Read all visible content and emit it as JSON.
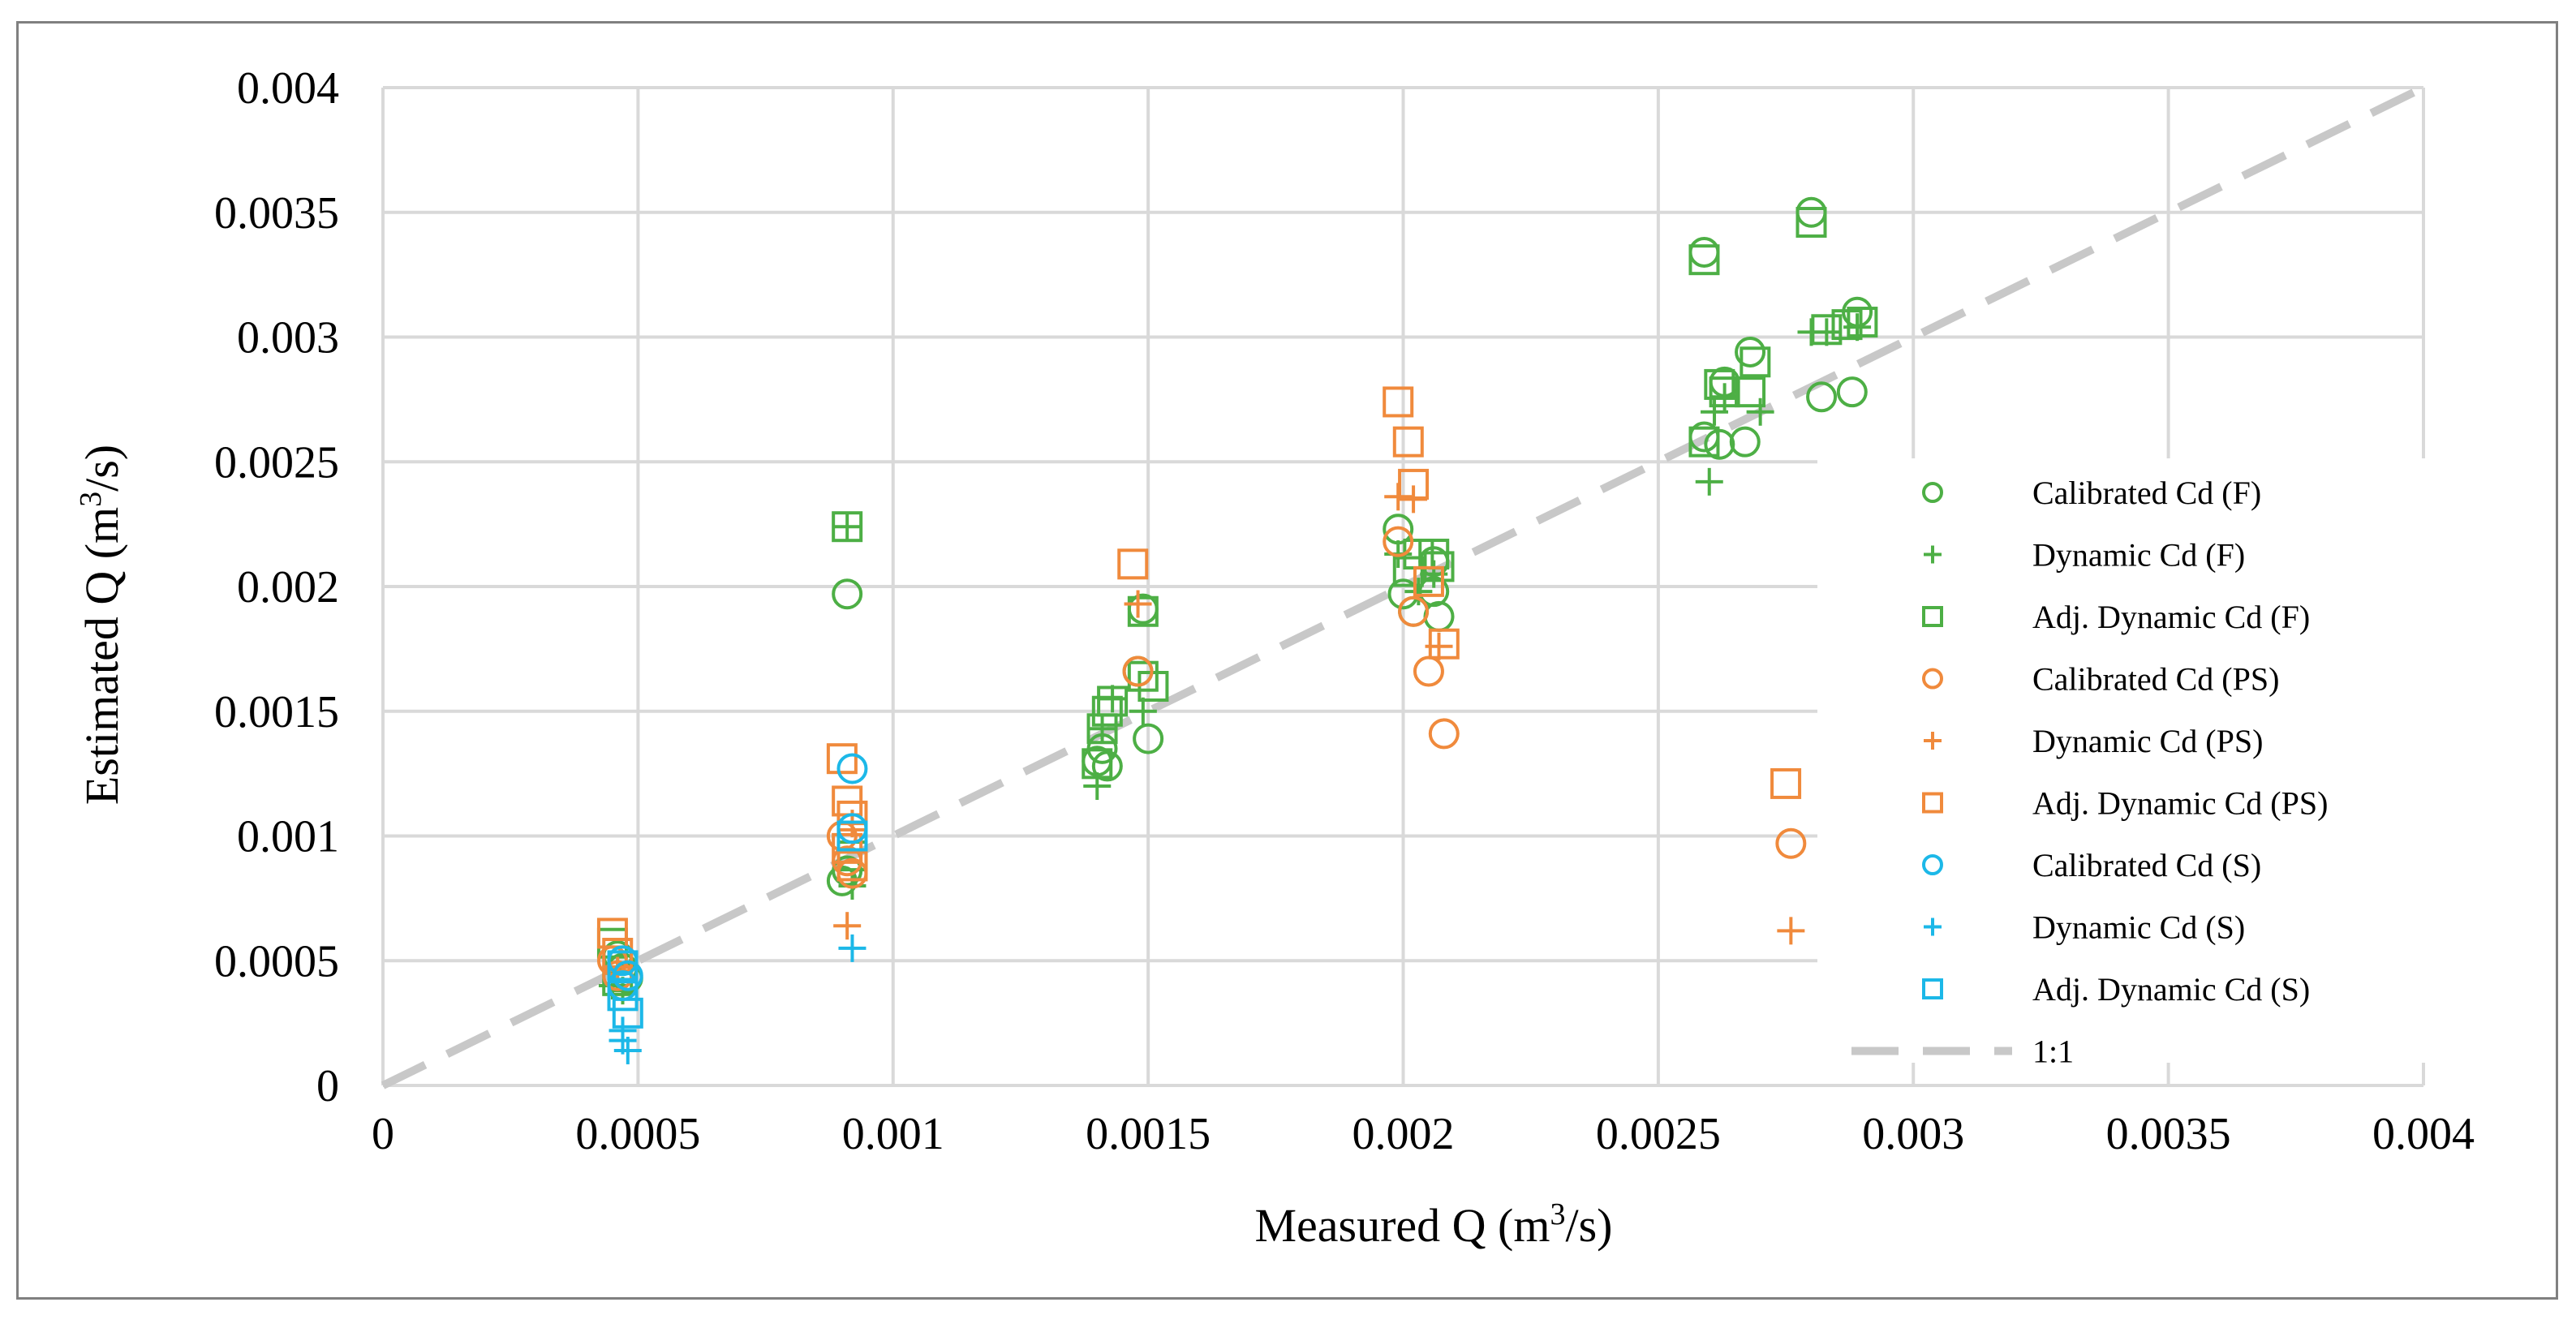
{
  "chart_data": {
    "type": "scatter",
    "title": "",
    "xlabel": "Measured Q (m³/s)",
    "ylabel": "Estimated Q (m³/s)",
    "xlim": [
      0,
      0.004
    ],
    "ylim": [
      0,
      0.004
    ],
    "xticks": [
      "0",
      "0.0005",
      "0.001",
      "0.0015",
      "0.002",
      "0.0025",
      "0.003",
      "0.0035",
      "0.004"
    ],
    "yticks": [
      "0",
      "0.0005",
      "0.001",
      "0.0015",
      "0.002",
      "0.0025",
      "0.003",
      "0.0035",
      "0.004"
    ],
    "grid": true,
    "legend_position": "right",
    "colors": {
      "F": "#4DAF45",
      "PS": "#F08A3C",
      "S": "#1CB8E8",
      "line": "#C8C8C8",
      "grid": "#D9D9D9"
    },
    "series": [
      {
        "name": "Calibrated Cd (F)",
        "marker": "circle",
        "color": "#4DAF45",
        "points": [
          [
            0.00046,
            0.00052
          ],
          [
            0.00047,
            0.00047
          ],
          [
            0.00048,
            0.00043
          ],
          [
            0.00091,
            0.00197
          ],
          [
            0.0009,
            0.00082
          ],
          [
            0.00091,
            0.00086
          ],
          [
            0.0014,
            0.0013
          ],
          [
            0.00141,
            0.00135
          ],
          [
            0.00142,
            0.00128
          ],
          [
            0.0015,
            0.00139
          ],
          [
            0.00148,
            0.00166
          ],
          [
            0.00149,
            0.00191
          ],
          [
            0.00199,
            0.00223
          ],
          [
            0.002,
            0.00197
          ],
          [
            0.00202,
            0.0019
          ],
          [
            0.00206,
            0.00198
          ],
          [
            0.00207,
            0.00188
          ],
          [
            0.00206,
            0.0021
          ],
          [
            0.00259,
            0.00334
          ],
          [
            0.00259,
            0.0026
          ],
          [
            0.00262,
            0.00257
          ],
          [
            0.00263,
            0.00282
          ],
          [
            0.00267,
            0.00258
          ],
          [
            0.00268,
            0.00294
          ],
          [
            0.0028,
            0.0035
          ],
          [
            0.00282,
            0.00276
          ],
          [
            0.00288,
            0.00278
          ],
          [
            0.00289,
            0.0031
          ]
        ]
      },
      {
        "name": "Dynamic Cd (F)",
        "marker": "plus",
        "color": "#4DAF45",
        "points": [
          [
            0.00045,
            0.0004
          ],
          [
            0.00046,
            0.00045
          ],
          [
            0.00047,
            0.00038
          ],
          [
            0.00091,
            0.00224
          ],
          [
            0.00092,
            0.0008
          ],
          [
            0.0014,
            0.0012
          ],
          [
            0.00141,
            0.00143
          ],
          [
            0.00143,
            0.00155
          ],
          [
            0.00149,
            0.0015
          ],
          [
            0.00199,
            0.00213
          ],
          [
            0.00203,
            0.00198
          ],
          [
            0.00206,
            0.00205
          ],
          [
            0.0026,
            0.00242
          ],
          [
            0.00261,
            0.0027
          ],
          [
            0.00263,
            0.00276
          ],
          [
            0.0027,
            0.0027
          ],
          [
            0.0028,
            0.00302
          ],
          [
            0.00283,
            0.00302
          ],
          [
            0.00289,
            0.00304
          ]
        ]
      },
      {
        "name": "Adj. Dynamic Cd (F)",
        "marker": "square",
        "color": "#4DAF45",
        "points": [
          [
            0.00045,
            0.00057
          ],
          [
            0.00046,
            0.00042
          ],
          [
            0.00091,
            0.00224
          ],
          [
            0.00092,
            0.00092
          ],
          [
            0.0014,
            0.00129
          ],
          [
            0.00141,
            0.00143
          ],
          [
            0.00142,
            0.0015
          ],
          [
            0.00143,
            0.00154
          ],
          [
            0.00149,
            0.00164
          ],
          [
            0.00151,
            0.0016
          ],
          [
            0.00149,
            0.0019
          ],
          [
            0.00201,
            0.00206
          ],
          [
            0.00203,
            0.00213
          ],
          [
            0.00206,
            0.00213
          ],
          [
            0.00207,
            0.00208
          ],
          [
            0.00259,
            0.00331
          ],
          [
            0.00259,
            0.00258
          ],
          [
            0.00262,
            0.00281
          ],
          [
            0.00263,
            0.00278
          ],
          [
            0.00268,
            0.00278
          ],
          [
            0.00269,
            0.0029
          ],
          [
            0.0028,
            0.00346
          ],
          [
            0.00283,
            0.00303
          ],
          [
            0.00287,
            0.00305
          ],
          [
            0.0029,
            0.00306
          ]
        ]
      },
      {
        "name": "Calibrated Cd (PS)",
        "marker": "circle",
        "color": "#F08A3C",
        "points": [
          [
            0.00045,
            0.0005
          ],
          [
            0.00046,
            0.00044
          ],
          [
            0.0009,
            0.001
          ],
          [
            0.00091,
            0.0009
          ],
          [
            0.00092,
            0.00085
          ],
          [
            0.00148,
            0.00166
          ],
          [
            0.00199,
            0.00218
          ],
          [
            0.00202,
            0.0019
          ],
          [
            0.00205,
            0.00166
          ],
          [
            0.00208,
            0.00141
          ],
          [
            0.00276,
            0.00097
          ]
        ]
      },
      {
        "name": "Dynamic Cd (PS)",
        "marker": "plus",
        "color": "#F08A3C",
        "points": [
          [
            0.00046,
            0.00046
          ],
          [
            0.00091,
            0.00064
          ],
          [
            0.00092,
            0.00105
          ],
          [
            0.00148,
            0.00193
          ],
          [
            0.00199,
            0.00236
          ],
          [
            0.00202,
            0.00235
          ],
          [
            0.00207,
            0.00176
          ],
          [
            0.00276,
            0.00062
          ]
        ]
      },
      {
        "name": "Adj. Dynamic Cd (PS)",
        "marker": "square",
        "color": "#F08A3C",
        "points": [
          [
            0.00045,
            0.00061
          ],
          [
            0.00046,
            0.00053
          ],
          [
            0.0009,
            0.00131
          ],
          [
            0.00091,
            0.00114
          ],
          [
            0.00092,
            0.00108
          ],
          [
            0.00091,
            0.00095
          ],
          [
            0.00092,
            0.00088
          ],
          [
            0.00147,
            0.00209
          ],
          [
            0.00199,
            0.00274
          ],
          [
            0.00201,
            0.00258
          ],
          [
            0.00202,
            0.00241
          ],
          [
            0.00205,
            0.00202
          ],
          [
            0.00208,
            0.00177
          ],
          [
            0.00275,
            0.00121
          ]
        ]
      },
      {
        "name": "Calibrated Cd (S)",
        "marker": "circle",
        "color": "#1CB8E8",
        "points": [
          [
            0.00047,
            0.0005
          ],
          [
            0.00048,
            0.00044
          ],
          [
            0.00047,
            0.0004
          ],
          [
            0.00092,
            0.00127
          ],
          [
            0.00092,
            0.00103
          ]
        ]
      },
      {
        "name": "Dynamic Cd (S)",
        "marker": "plus",
        "color": "#1CB8E8",
        "points": [
          [
            0.00047,
            0.00018
          ],
          [
            0.00048,
            0.00014
          ],
          [
            0.00047,
            0.00022
          ],
          [
            0.00092,
            0.00055
          ]
        ]
      },
      {
        "name": "Adj. Dynamic Cd (S)",
        "marker": "square",
        "color": "#1CB8E8",
        "points": [
          [
            0.00047,
            0.00036
          ],
          [
            0.00048,
            0.00029
          ],
          [
            0.00047,
            0.00048
          ],
          [
            0.00092,
            0.001
          ]
        ]
      },
      {
        "name": "1:1",
        "marker": "dashed-line",
        "color": "#C8C8C8",
        "points": [
          [
            0,
            0
          ],
          [
            0.004,
            0.004
          ]
        ]
      }
    ]
  }
}
